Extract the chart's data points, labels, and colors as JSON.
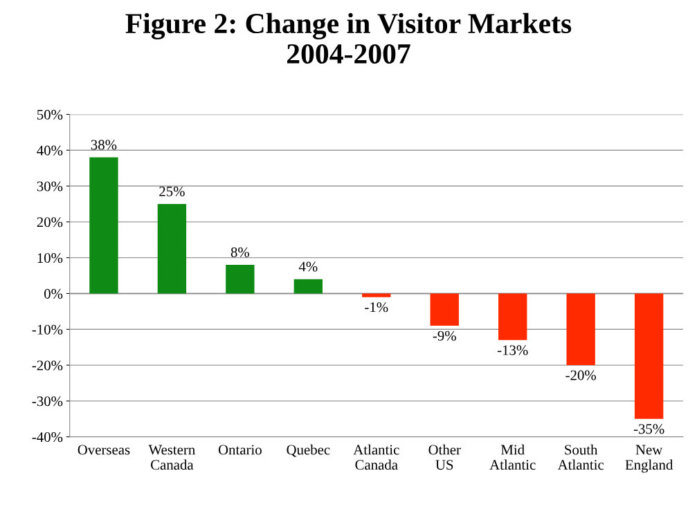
{
  "chart_data": {
    "type": "bar",
    "title": "Figure 2: Change in Visitor Markets\n2004-2007",
    "categories": [
      "Overseas",
      "Western Canada",
      "Ontario",
      "Quebec",
      "Atlantic Canada",
      "Other US",
      "Mid Atlantic",
      "South Atlantic",
      "New England"
    ],
    "values": [
      38,
      25,
      8,
      4,
      -1,
      -9,
      -13,
      -20,
      -35
    ],
    "colors": [
      "#0f8a14",
      "#0f8a14",
      "#0f8a14",
      "#0f8a14",
      "#ff2a00",
      "#ff2a00",
      "#ff2a00",
      "#ff2a00",
      "#ff2a00"
    ],
    "value_labels": [
      "38%",
      "25%",
      "8%",
      "4%",
      "-1%",
      "-9%",
      "-13%",
      "-20%",
      "-35%"
    ],
    "ylim": [
      -40,
      50
    ],
    "yticks": [
      {
        "value": -40,
        "label": "-40%"
      },
      {
        "value": -30,
        "label": "-30%"
      },
      {
        "value": -20,
        "label": "-20%"
      },
      {
        "value": -10,
        "label": "-10%"
      },
      {
        "value": 0,
        "label": "0%"
      },
      {
        "value": 10,
        "label": "10%"
      },
      {
        "value": 20,
        "label": "20%"
      },
      {
        "value": 30,
        "label": "30%"
      },
      {
        "value": 40,
        "label": "40%"
      },
      {
        "value": 50,
        "label": "50%"
      }
    ],
    "grid": "y",
    "legend": false
  }
}
